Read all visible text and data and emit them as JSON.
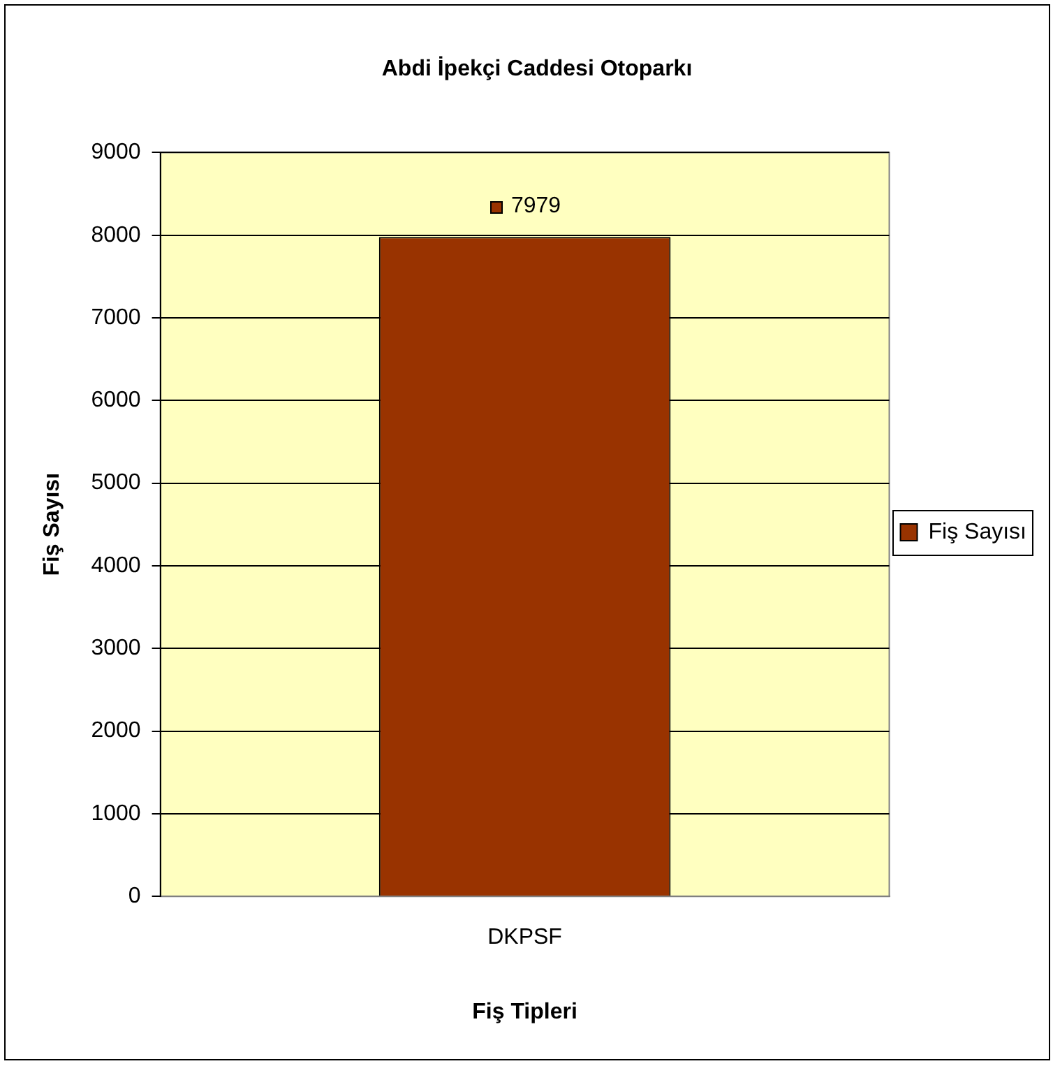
{
  "chart_data": {
    "type": "bar",
    "title": "Abdi İpekçi Caddesi Otoparkı",
    "xlabel": "Fiş Tipleri",
    "ylabel": "Fiş Sayısı",
    "categories": [
      "DKPSF"
    ],
    "series": [
      {
        "name": "Fiş Sayısı",
        "color": "#993300",
        "values": [
          7979
        ]
      }
    ],
    "ylim": [
      0,
      9000
    ],
    "yticks": [
      0,
      1000,
      2000,
      3000,
      4000,
      5000,
      6000,
      7000,
      8000,
      9000
    ],
    "grid": "y",
    "legend": "right",
    "data_labels": true
  }
}
